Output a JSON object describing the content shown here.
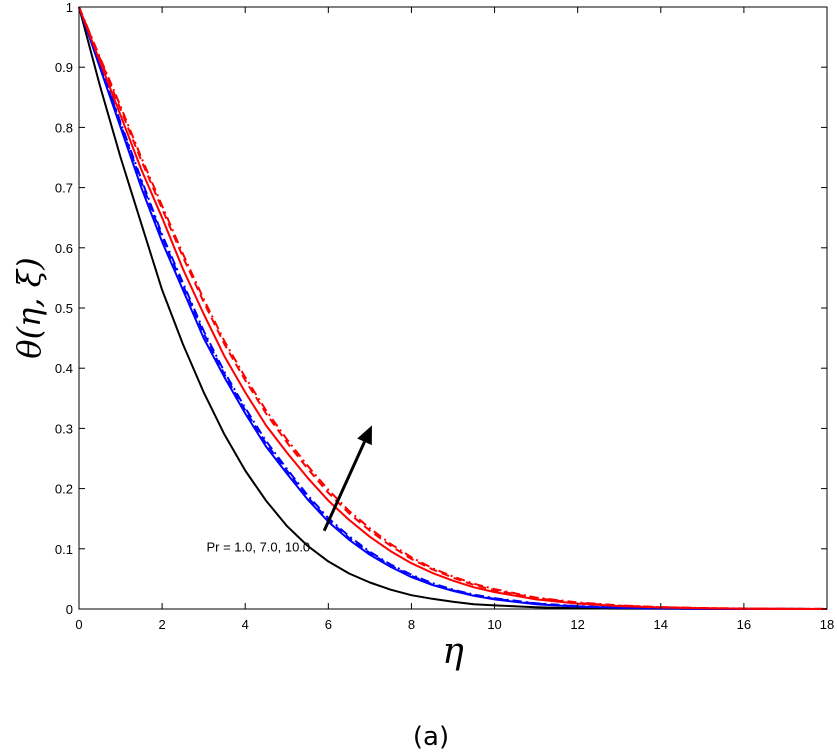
{
  "chart_data": {
    "type": "line",
    "xlabel": "η",
    "ylabel": "θ(η, ξ)",
    "xlim": [
      0,
      18
    ],
    "ylim": [
      0,
      1
    ],
    "xticks": [
      0,
      2,
      4,
      6,
      8,
      10,
      12,
      14,
      16,
      18
    ],
    "yticks": [
      0,
      0.1,
      0.2,
      0.3,
      0.4,
      0.5,
      0.6,
      0.7,
      0.8,
      0.9,
      1
    ],
    "ytick_labels": [
      "0",
      "0.1",
      "0.2",
      "0.3",
      "0.4",
      "0.5",
      "0.6",
      "0.7",
      "0.8",
      "0.9",
      "1"
    ],
    "grid": false,
    "annotation": {
      "text": "Pr = 1.0, 7.0, 10.0",
      "arrow_from": [
        5.9,
        0.13
      ],
      "arrow_to": [
        7.05,
        0.305
      ]
    },
    "caption": "(a)",
    "series": [
      {
        "color": "#000000",
        "style": "solid",
        "x": [
          0,
          0.5,
          1,
          1.5,
          2,
          2.5,
          3,
          3.5,
          4,
          4.5,
          5,
          5.5,
          6,
          6.5,
          7,
          7.5,
          8,
          8.5,
          9,
          9.5,
          10,
          11,
          12,
          13,
          14,
          15,
          16,
          17,
          18
        ],
        "y": [
          1,
          0.87,
          0.75,
          0.64,
          0.53,
          0.44,
          0.36,
          0.29,
          0.23,
          0.18,
          0.138,
          0.105,
          0.079,
          0.059,
          0.044,
          0.032,
          0.023,
          0.017,
          0.012,
          0.008,
          0.006,
          0.003,
          0.0013,
          0.0006,
          0.0003,
          0.0001,
          0,
          0,
          0
        ]
      },
      {
        "color": "#0000ff",
        "style": "solid",
        "x": [
          0,
          0.5,
          1,
          1.5,
          2,
          2.5,
          3,
          3.5,
          4,
          4.5,
          5,
          5.5,
          6,
          6.5,
          7,
          7.5,
          8,
          8.5,
          9,
          9.5,
          10,
          11,
          12,
          13,
          14,
          15,
          16,
          17,
          18
        ],
        "y": [
          1,
          0.9,
          0.8,
          0.7,
          0.61,
          0.53,
          0.45,
          0.385,
          0.325,
          0.27,
          0.225,
          0.182,
          0.145,
          0.115,
          0.09,
          0.07,
          0.053,
          0.04,
          0.03,
          0.022,
          0.016,
          0.008,
          0.004,
          0.002,
          0.001,
          0.0005,
          0.0002,
          0.0001,
          0
        ]
      },
      {
        "color": "#0000ff",
        "style": "dashed",
        "x": [
          0,
          0.5,
          1,
          1.5,
          2,
          2.5,
          3,
          3.5,
          4,
          4.5,
          5,
          5.5,
          6,
          6.5,
          7,
          7.5,
          8,
          8.5,
          9,
          9.5,
          10,
          11,
          12,
          13,
          14,
          15,
          16,
          17,
          18
        ],
        "y": [
          1,
          0.905,
          0.805,
          0.71,
          0.618,
          0.538,
          0.458,
          0.39,
          0.33,
          0.275,
          0.23,
          0.186,
          0.148,
          0.118,
          0.093,
          0.072,
          0.055,
          0.041,
          0.031,
          0.023,
          0.017,
          0.009,
          0.0045,
          0.0022,
          0.001,
          0.0005,
          0.0002,
          0.0001,
          0
        ]
      },
      {
        "color": "#0000ff",
        "style": "dashdot",
        "x": [
          0,
          0.5,
          1,
          1.5,
          2,
          2.5,
          3,
          3.5,
          4,
          4.5,
          5,
          5.5,
          6,
          6.5,
          7,
          7.5,
          8,
          8.5,
          9,
          9.5,
          10,
          11,
          12,
          13,
          14,
          15,
          16,
          17,
          18
        ],
        "y": [
          1,
          0.907,
          0.808,
          0.714,
          0.622,
          0.542,
          0.462,
          0.394,
          0.334,
          0.279,
          0.233,
          0.189,
          0.151,
          0.121,
          0.095,
          0.074,
          0.057,
          0.043,
          0.032,
          0.024,
          0.018,
          0.0095,
          0.0048,
          0.0024,
          0.0011,
          0.0005,
          0.0002,
          0.0001,
          0
        ]
      },
      {
        "color": "#ff0000",
        "style": "solid",
        "x": [
          0,
          0.5,
          1,
          1.5,
          2,
          2.5,
          3,
          3.5,
          4,
          4.5,
          5,
          5.5,
          6,
          6.5,
          7,
          7.5,
          8,
          8.5,
          9,
          9.5,
          10,
          11,
          12,
          13,
          14,
          15,
          16,
          17,
          18
        ],
        "y": [
          1,
          0.91,
          0.82,
          0.73,
          0.65,
          0.565,
          0.49,
          0.42,
          0.36,
          0.305,
          0.26,
          0.218,
          0.18,
          0.148,
          0.12,
          0.096,
          0.076,
          0.06,
          0.047,
          0.036,
          0.028,
          0.016,
          0.009,
          0.0048,
          0.0025,
          0.0012,
          0.0005,
          0.0002,
          0
        ]
      },
      {
        "color": "#ff0000",
        "style": "dashed",
        "x": [
          0,
          0.5,
          1,
          1.5,
          2,
          2.5,
          3,
          3.5,
          4,
          4.5,
          5,
          5.5,
          6,
          6.5,
          7,
          7.5,
          8,
          8.5,
          9,
          9.5,
          10,
          11,
          12,
          13,
          14,
          15,
          16,
          17,
          18
        ],
        "y": [
          1,
          0.915,
          0.83,
          0.745,
          0.665,
          0.585,
          0.51,
          0.44,
          0.38,
          0.325,
          0.277,
          0.233,
          0.193,
          0.159,
          0.13,
          0.105,
          0.083,
          0.066,
          0.052,
          0.04,
          0.031,
          0.018,
          0.01,
          0.0055,
          0.003,
          0.0015,
          0.0007,
          0.0003,
          0.0001
        ]
      },
      {
        "color": "#ff0000",
        "style": "dashdot",
        "x": [
          0,
          0.5,
          1,
          1.5,
          2,
          2.5,
          3,
          3.5,
          4,
          4.5,
          5,
          5.5,
          6,
          6.5,
          7,
          7.5,
          8,
          8.5,
          9,
          9.5,
          10,
          11,
          12,
          13,
          14,
          15,
          16,
          17,
          18
        ],
        "y": [
          1,
          0.917,
          0.835,
          0.75,
          0.67,
          0.59,
          0.515,
          0.445,
          0.385,
          0.33,
          0.282,
          0.238,
          0.198,
          0.163,
          0.134,
          0.108,
          0.086,
          0.068,
          0.054,
          0.042,
          0.033,
          0.019,
          0.011,
          0.006,
          0.0032,
          0.0016,
          0.0008,
          0.0003,
          0.0001
        ]
      }
    ]
  }
}
